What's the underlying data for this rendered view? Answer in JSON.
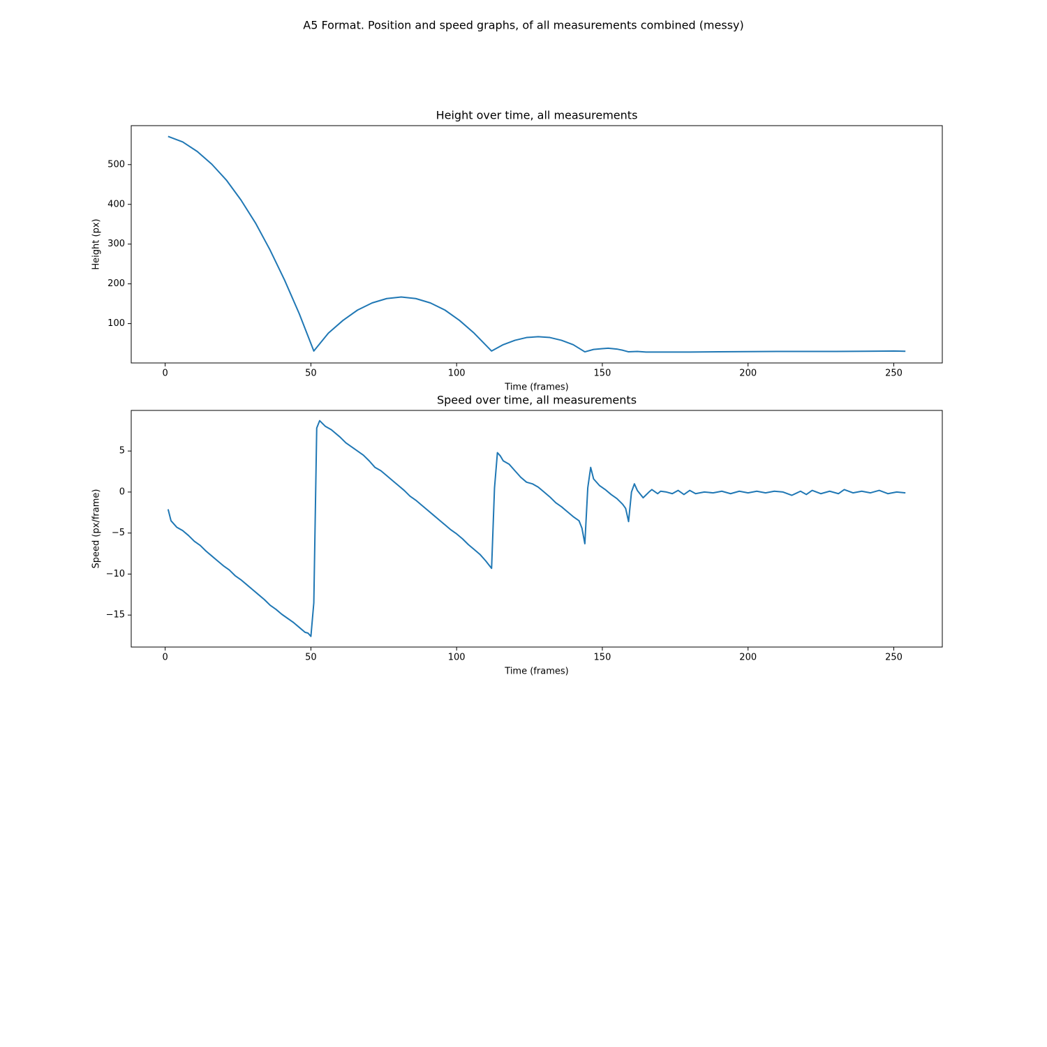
{
  "title": "A5 Format. Position and speed graphs, of all measurements combined (messy)",
  "chart_data": [
    {
      "type": "line",
      "title": "Height over time, all measurements",
      "xlabel": "Time (frames)",
      "ylabel": "Height (px)",
      "color": "#1f77b4",
      "x": [
        1,
        6,
        11,
        16,
        21,
        26,
        31,
        36,
        41,
        46,
        51,
        56,
        61,
        66,
        71,
        76,
        81,
        86,
        91,
        96,
        101,
        106,
        112,
        116,
        120,
        124,
        128,
        132,
        136,
        140,
        144,
        147,
        150,
        152,
        155,
        157,
        159,
        162,
        165,
        170,
        180,
        190,
        200,
        210,
        220,
        230,
        240,
        250,
        254
      ],
      "values": [
        571,
        557,
        533,
        501,
        461,
        411,
        353,
        285,
        209,
        125,
        31,
        76,
        108,
        134,
        152,
        163,
        167,
        163,
        152,
        134,
        108,
        76,
        31,
        47,
        58,
        65,
        67,
        65,
        58,
        47,
        29,
        35,
        37,
        38,
        36,
        33,
        29,
        30,
        28.5,
        28.5,
        28.5,
        29,
        29.5,
        30,
        30,
        30,
        30.5,
        31,
        30.5
      ],
      "xlim": [
        -11.65,
        266.65
      ],
      "ylim": [
        1,
        598
      ],
      "xticks": [
        0,
        50,
        100,
        150,
        200,
        250
      ],
      "yticks": [
        100,
        200,
        300,
        400,
        500
      ]
    },
    {
      "type": "line",
      "title": "Speed over time, all measurements",
      "xlabel": "Time (frames)",
      "ylabel": "Speed (px/frame)",
      "color": "#1f77b4",
      "x": [
        1,
        2,
        4,
        6,
        8,
        10,
        12,
        14,
        16,
        18,
        20,
        22,
        24,
        26,
        28,
        30,
        32,
        34,
        36,
        38,
        40,
        42,
        44,
        46,
        48,
        49,
        50,
        51,
        52,
        53,
        55,
        57,
        60,
        62,
        64,
        66,
        68,
        70,
        72,
        74,
        76,
        78,
        80,
        82,
        84,
        86,
        88,
        90,
        92,
        94,
        96,
        98,
        100,
        102,
        104,
        106,
        108,
        110,
        112,
        113,
        114,
        115,
        116,
        118,
        120,
        122,
        124,
        126,
        128,
        130,
        132,
        134,
        136,
        138,
        140,
        142,
        143,
        144,
        145,
        146,
        147,
        149,
        151,
        153,
        155,
        157,
        158,
        159,
        160,
        161,
        162,
        164,
        166,
        167,
        169,
        170,
        172,
        174,
        176,
        178,
        180,
        182,
        185,
        188,
        191,
        194,
        197,
        200,
        203,
        206,
        209,
        212,
        215,
        218,
        220,
        222,
        225,
        228,
        231,
        233,
        236,
        239,
        242,
        245,
        248,
        251,
        254
      ],
      "values": [
        -2.1,
        -3.5,
        -4.3,
        -4.7,
        -5.3,
        -6.0,
        -6.5,
        -7.2,
        -7.8,
        -8.4,
        -9.0,
        -9.5,
        -10.2,
        -10.7,
        -11.3,
        -11.9,
        -12.5,
        -13.1,
        -13.8,
        -14.3,
        -14.9,
        -15.4,
        -15.9,
        -16.5,
        -17.1,
        -17.2,
        -17.6,
        -13.5,
        7.8,
        8.7,
        8.0,
        7.6,
        6.7,
        6.0,
        5.5,
        5.0,
        4.5,
        3.8,
        3.0,
        2.6,
        2.0,
        1.4,
        0.8,
        0.2,
        -0.5,
        -1.0,
        -1.6,
        -2.2,
        -2.8,
        -3.4,
        -4.0,
        -4.6,
        -5.1,
        -5.7,
        -6.4,
        -7.0,
        -7.6,
        -8.4,
        -9.3,
        0.5,
        4.8,
        4.4,
        3.8,
        3.4,
        2.6,
        1.8,
        1.2,
        1.0,
        0.6,
        0.0,
        -0.6,
        -1.3,
        -1.8,
        -2.4,
        -3.0,
        -3.5,
        -4.4,
        -6.3,
        0.5,
        3.0,
        1.6,
        0.8,
        0.3,
        -0.3,
        -0.8,
        -1.5,
        -2.0,
        -3.6,
        0.0,
        1.0,
        0.2,
        -0.7,
        0.0,
        0.3,
        -0.2,
        0.1,
        0.0,
        -0.2,
        0.2,
        -0.3,
        0.2,
        -0.2,
        0.0,
        -0.1,
        0.1,
        -0.2,
        0.1,
        -0.1,
        0.1,
        -0.1,
        0.1,
        0.0,
        -0.4,
        0.1,
        -0.3,
        0.2,
        -0.2,
        0.1,
        -0.2,
        0.3,
        -0.1,
        0.1,
        -0.1,
        0.2,
        -0.2,
        0.0,
        -0.1
      ],
      "xlim": [
        -11.65,
        266.65
      ],
      "ylim": [
        -18.9,
        9.95
      ],
      "xticks": [
        0,
        50,
        100,
        150,
        200,
        250
      ],
      "yticks": [
        {
          "value": -15,
          "label": "−15"
        },
        {
          "value": -10,
          "label": "−10"
        },
        {
          "value": -5,
          "label": "−5"
        },
        0,
        5
      ]
    }
  ]
}
